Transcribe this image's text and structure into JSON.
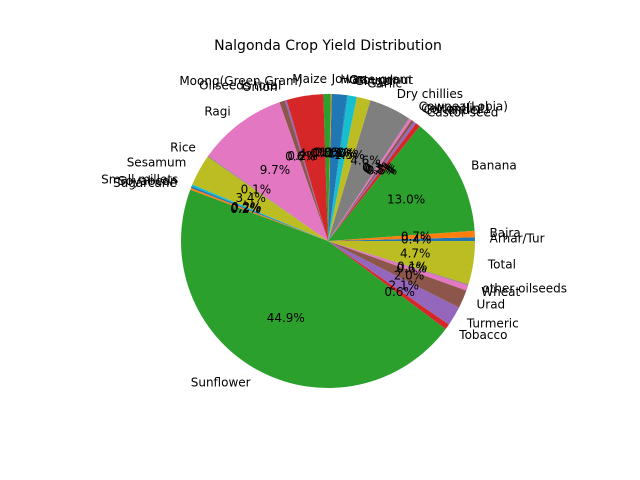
{
  "chart_data": {
    "type": "pie",
    "title": "Nalgonda Crop Yield Distribution",
    "autopct_format": "{:.1f}%",
    "slices": [
      {
        "label": "Arhar/Tur",
        "value": 0.4,
        "color": "#1f77b4"
      },
      {
        "label": "Bajra",
        "value": 0.7,
        "color": "#ff7f0e"
      },
      {
        "label": "Banana",
        "value": 13.0,
        "color": "#2ca02c"
      },
      {
        "label": "Castor seed",
        "value": 0.5,
        "color": "#d62728"
      },
      {
        "label": "Coriander",
        "value": 0.3,
        "color": "#9467bd"
      },
      {
        "label": "Cotton(lint)",
        "value": 0.3,
        "color": "#8c564b"
      },
      {
        "label": "Cowpea(Lobia)",
        "value": 0.3,
        "color": "#e377c2"
      },
      {
        "label": "Dry chillies",
        "value": 4.6,
        "color": "#7f7f7f"
      },
      {
        "label": "Garlic",
        "value": 1.5,
        "color": "#bcbd22"
      },
      {
        "label": "Ginger",
        "value": 1.0,
        "color": "#17becf"
      },
      {
        "label": "Groundnut",
        "value": 0.1,
        "color": "#1f77b4"
      },
      {
        "label": "Horse-gram",
        "value": 1.6,
        "color": "#1f77b4"
      },
      {
        "label": "Jowar",
        "value": 0.1,
        "color": "#ff7f0e"
      },
      {
        "label": "Maize",
        "value": 0.8,
        "color": "#2ca02c"
      },
      {
        "label": "Moong(Green Gram)",
        "value": 4.0,
        "color": "#d62728"
      },
      {
        "label": "Oilseeds total",
        "value": 0.2,
        "color": "#9467bd"
      },
      {
        "label": "Onion",
        "value": 0.6,
        "color": "#8c564b"
      },
      {
        "label": "Ragi",
        "value": 9.7,
        "color": "#e377c2"
      },
      {
        "label": "Rice",
        "value": 0.1,
        "color": "#7f7f7f"
      },
      {
        "label": "Sesamum",
        "value": 3.4,
        "color": "#bcbd22"
      },
      {
        "label": "Small millets",
        "value": 0.2,
        "color": "#17becf"
      },
      {
        "label": "Soyabean",
        "value": 0.2,
        "color": "#1f77b4"
      },
      {
        "label": "Sugarcane",
        "value": 0.2,
        "color": "#ff7f0e"
      },
      {
        "label": "Sunflower",
        "value": 44.9,
        "color": "#2ca02c"
      },
      {
        "label": "Tobacco",
        "value": 0.6,
        "color": "#d62728"
      },
      {
        "label": "Turmeric",
        "value": 2.1,
        "color": "#9467bd"
      },
      {
        "label": "Urad",
        "value": 2.0,
        "color": "#8c564b"
      },
      {
        "label": "Wheat",
        "value": 0.6,
        "color": "#e377c2"
      },
      {
        "label": "other oilseeds",
        "value": 0.1,
        "color": "#7f7f7f"
      },
      {
        "label": "Total",
        "value": 4.7,
        "color": "#bcbd22"
      }
    ]
  }
}
